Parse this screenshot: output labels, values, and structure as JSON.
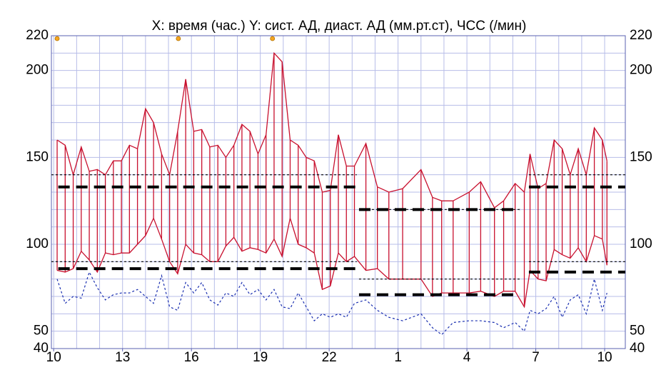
{
  "chart_data": {
    "type": "line",
    "title": "X: время (час.)  Y: сист. АД, диаст. АД (мм.рт.ст), ЧСС (/мин)",
    "x": [
      10.15,
      10.5,
      10.85,
      11.2,
      11.55,
      11.9,
      12.25,
      12.6,
      12.95,
      13.3,
      13.65,
      14.0,
      14.35,
      14.7,
      15.05,
      15.4,
      15.75,
      16.1,
      16.45,
      16.8,
      17.15,
      17.5,
      17.85,
      18.2,
      18.55,
      18.9,
      19.25,
      19.6,
      19.95,
      20.3,
      20.65,
      21.0,
      21.35,
      21.7,
      22.05,
      22.4,
      22.75,
      23.1,
      23.6,
      24.1,
      24.6,
      25.2,
      26.0,
      26.5,
      26.9,
      27.4,
      28.1,
      28.6,
      29.2,
      29.6,
      30.1,
      30.5,
      30.75,
      31.1,
      31.45,
      31.8,
      32.15,
      32.5,
      32.85,
      33.2,
      33.55,
      33.9,
      34.1
    ],
    "series": [
      {
        "color": "#c8102e",
        "values": [
          160,
          157,
          140,
          156,
          142,
          143,
          140,
          148,
          148,
          157,
          155,
          178,
          170,
          152,
          140,
          165,
          195,
          165,
          166,
          156,
          157,
          150,
          157,
          169,
          165,
          152,
          163,
          210,
          205,
          160,
          157,
          150,
          148,
          130,
          131,
          163,
          145,
          145,
          158,
          133,
          130,
          132,
          143,
          127,
          125,
          125,
          130,
          136,
          121,
          125,
          135,
          130,
          152,
          132,
          135,
          160,
          155,
          140,
          155,
          140,
          167,
          160,
          148
        ]
      },
      {
        "color": "#c8102e",
        "values": [
          85,
          84,
          86,
          96,
          91,
          84,
          95,
          94,
          95,
          95,
          100,
          105,
          115,
          103,
          90,
          83,
          100,
          95,
          94,
          90,
          90,
          99,
          104,
          96,
          98,
          97,
          95,
          103,
          93,
          115,
          100,
          98,
          95,
          74,
          76,
          95,
          90,
          93,
          85,
          86,
          80,
          80,
          80,
          70,
          72,
          72,
          72,
          73,
          70,
          73,
          73,
          64,
          85,
          80,
          79,
          97,
          94,
          92,
          98,
          90,
          105,
          103,
          88
        ]
      },
      {
        "color": "#1a2fb0",
        "values": [
          80,
          66,
          70,
          69,
          84,
          75,
          68,
          71,
          72,
          72,
          74,
          70,
          66,
          82,
          64,
          62,
          78,
          72,
          78,
          68,
          65,
          72,
          70,
          78,
          71,
          74,
          68,
          74,
          64,
          63,
          72,
          64,
          56,
          60,
          58,
          60,
          58,
          66,
          68,
          62,
          58,
          56,
          60,
          52,
          48,
          55,
          56,
          56,
          55,
          52,
          55,
          50,
          62,
          60,
          63,
          70,
          58,
          68,
          71,
          60,
          80,
          62,
          72
        ]
      }
    ],
    "limits": [
      {
        "from": 10.2,
        "to": 23.2,
        "value": 133,
        "style": "dashed"
      },
      {
        "from": 23.3,
        "to": 30.3,
        "value": 120,
        "style": "dashed"
      },
      {
        "from": 30.7,
        "to": 34.9,
        "value": 133,
        "style": "dashed"
      },
      {
        "from": 10.2,
        "to": 23.2,
        "value": 86,
        "style": "dashed"
      },
      {
        "from": 23.3,
        "to": 30.3,
        "value": 71,
        "style": "dashed"
      },
      {
        "from": 30.7,
        "to": 34.9,
        "value": 84,
        "style": "dashed"
      },
      {
        "from": 9.9,
        "to": 23.2,
        "value": 140,
        "style": "dotted"
      },
      {
        "from": 30.7,
        "to": 34.9,
        "value": 140,
        "style": "dotted"
      },
      {
        "from": 9.9,
        "to": 23.2,
        "value": 90,
        "style": "dotted"
      },
      {
        "from": 30.7,
        "to": 34.9,
        "value": 90,
        "style": "dotted"
      },
      {
        "from": 23.3,
        "to": 30.3,
        "value": 120,
        "style": "dotted"
      },
      {
        "from": 23.3,
        "to": 30.3,
        "value": 80,
        "style": "dotted"
      }
    ],
    "markers": [
      10.15,
      15.43,
      19.53
    ],
    "marker_color": "#f5a623",
    "xlim": [
      9.9,
      34.9
    ],
    "ylim": [
      40,
      220
    ],
    "y2lim": [
      40,
      220
    ],
    "xticks": [
      10,
      13,
      16,
      19,
      22,
      {
        "value": 25,
        "label": "1"
      },
      {
        "value": 28,
        "label": "4"
      },
      {
        "value": 31,
        "label": "7"
      },
      {
        "value": 34,
        "label": "10"
      }
    ],
    "yticks": [
      40,
      50,
      100,
      150,
      200,
      220
    ],
    "y2ticks": [
      40,
      50,
      100,
      150,
      200,
      220
    ],
    "xgrid": [
      10,
      11,
      12,
      13,
      14,
      15,
      16,
      17,
      18,
      19,
      20,
      21,
      22,
      23,
      24,
      25,
      26,
      27,
      28,
      29,
      30,
      31,
      32,
      33,
      34
    ],
    "ygrid": [
      50,
      60,
      70,
      80,
      90,
      100,
      110,
      120,
      130,
      140,
      150,
      160,
      170,
      180,
      190,
      200,
      210
    ],
    "grid": true,
    "grid_color": "#b7bde8"
  }
}
